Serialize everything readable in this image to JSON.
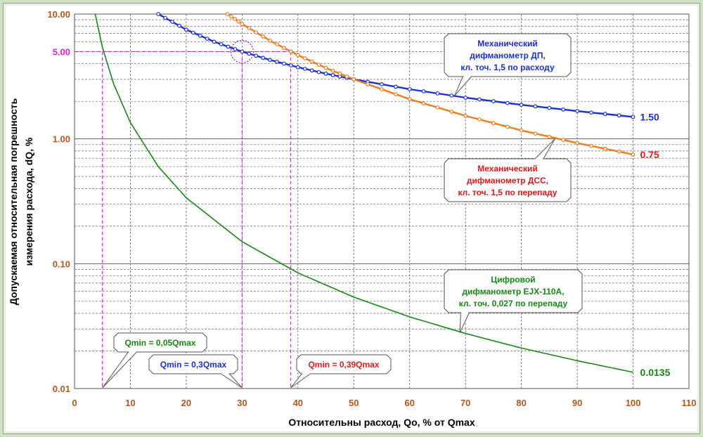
{
  "chart_data": {
    "type": "line",
    "xlabel": "Относительны расход, Qo, % от Qmax",
    "ylabel_lines": [
      "Допускаемая относительная погрешность",
      "измерения расхода, dQ, %"
    ],
    "xlim": [
      0,
      110
    ],
    "ylim": [
      0.01,
      10
    ],
    "y_scale": "log",
    "grid": true,
    "x_ticks": [
      "0",
      "10",
      "20",
      "30",
      "40",
      "50",
      "60",
      "70",
      "80",
      "90",
      "100",
      "110"
    ],
    "y_ticks": [
      {
        "value": 10,
        "label": "10.00"
      },
      {
        "value": 5,
        "label": "5.00"
      },
      {
        "value": 1,
        "label": "1.00"
      },
      {
        "value": 0.1,
        "label": "0.10"
      },
      {
        "value": 0.01,
        "label": "0.01"
      }
    ],
    "series": [
      {
        "color": "#1a2fd6",
        "markers": true,
        "x": [
          15,
          20,
          25,
          30,
          35,
          40,
          45,
          50,
          60,
          70,
          80,
          90,
          100
        ],
        "y": [
          10.0,
          7.5,
          6.0,
          5.0,
          4.29,
          3.75,
          3.33,
          3.0,
          2.5,
          2.14,
          1.875,
          1.67,
          1.5
        ],
        "end_label": "1.50",
        "callout_lines": [
          "Механический",
          "дифманометр ДП,",
          "кл. точ. 1,5 по расходу"
        ]
      },
      {
        "color": "#f07a1a",
        "markers": true,
        "x": [
          27.4,
          30,
          35,
          40,
          45,
          50,
          60,
          70,
          80,
          90,
          100
        ],
        "y": [
          10.0,
          8.33,
          6.12,
          4.69,
          3.7,
          3.0,
          2.08,
          1.53,
          1.17,
          0.926,
          0.75
        ],
        "end_label": "0.75",
        "end_label_color": "#e81818",
        "callout_lines": [
          "Механический",
          "дифманометр ДСС,",
          "кл. точ. 1,5 по перепаду"
        ],
        "callout_color": "#e81818"
      },
      {
        "color": "#138a13",
        "markers": false,
        "x": [
          3.7,
          5,
          7,
          10,
          15,
          20,
          30,
          40,
          50,
          60,
          70,
          80,
          90,
          100
        ],
        "y": [
          10.0,
          5.4,
          2.76,
          1.35,
          0.6,
          0.3375,
          0.15,
          0.0844,
          0.054,
          0.0375,
          0.0276,
          0.0211,
          0.0167,
          0.0135
        ],
        "end_label": "0.0135",
        "callout_lines": [
          "Цифровой",
          "дифманометр EJX-110A,",
          "кл. точ. 0,027 по перепаду"
        ]
      }
    ],
    "threshold_line": {
      "y": 5,
      "color": "#e020e0"
    },
    "qmin_markers": [
      {
        "x": 5,
        "label": "Qmin = 0,05Qmax",
        "color": "#138a13"
      },
      {
        "x": 30,
        "label": "Qmin = 0,3Qmax",
        "color": "#1a2fd6"
      },
      {
        "x": 38.7,
        "label": "Qmin = 0,39Qmax",
        "color": "#e81818"
      }
    ],
    "colors": {
      "axis_text": "#b8561a",
      "ylabel": "#8a1a8a",
      "grid": "#666666",
      "guide": "#e020e0",
      "circle": "#a020a0"
    }
  }
}
